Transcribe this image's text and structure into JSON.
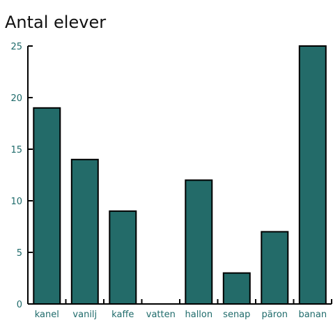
{
  "chart_data": {
    "type": "bar",
    "title": "Antal elever",
    "xlabel": "",
    "ylabel": "",
    "categories": [
      "kanel",
      "vanilj",
      "kaffe",
      "vatten",
      "hallon",
      "senap",
      "päron",
      "banan"
    ],
    "values": [
      19,
      14,
      9,
      0,
      12,
      3,
      7,
      25
    ],
    "ylim": [
      0,
      25
    ],
    "yticks": [
      0,
      5,
      10,
      15,
      20,
      25
    ],
    "grid": false,
    "colors": {
      "bar": "#236b69",
      "bar_stroke": "#000000",
      "axis": "#000000",
      "label": "#1f6b6b"
    }
  }
}
